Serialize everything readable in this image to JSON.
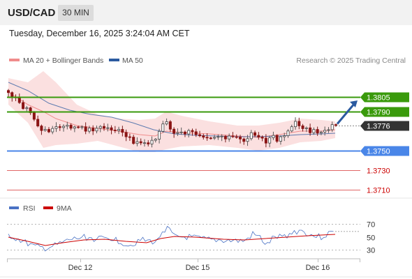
{
  "header": {
    "symbol": "USD/CAD",
    "timeframe": "30 MIN",
    "timestamp": "Tuesday, December 16, 2025 3:24:04 AM CET"
  },
  "legend": {
    "items": [
      {
        "label": "MA 20 + Bollinger Bands",
        "color": "#f08c8c"
      },
      {
        "label": "MA 50",
        "color": "#2b5aa0"
      }
    ],
    "credit": "Research © 2025 Trading Central"
  },
  "chart_data": [
    {
      "type": "line",
      "panel": "price",
      "ylim": [
        1.37,
        1.383
      ],
      "levels": [
        {
          "value": 1.3805,
          "label": "1.3805",
          "kind": "resistance",
          "color": "#3a9a0c",
          "text_color": "#ffffff",
          "tag": "box"
        },
        {
          "value": 1.379,
          "label": "1.3790",
          "kind": "resistance",
          "color": "#3a9a0c",
          "text_color": "#ffffff",
          "tag": "box"
        },
        {
          "value": 1.3776,
          "label": "1.3776",
          "kind": "last-price",
          "color": "#333333",
          "text_color": "#ffffff",
          "tag": "box"
        },
        {
          "value": 1.375,
          "label": "1.3750",
          "kind": "pivot",
          "color": "#4a86e8",
          "text_color": "#ffffff",
          "tag": "box"
        },
        {
          "value": 1.373,
          "label": "1.3730",
          "kind": "support",
          "color": "#e06666",
          "text_color": "#cc0000",
          "tag": "text"
        },
        {
          "value": 1.371,
          "label": "1.3710",
          "kind": "support",
          "color": "#e06666",
          "text_color": "#cc0000",
          "tag": "text"
        }
      ],
      "series": [
        {
          "name": "MA 20 + Bollinger Bands",
          "color": "#f08c8c"
        },
        {
          "name": "MA 50",
          "color": "#2b5aa0"
        }
      ],
      "x_ticks": [
        "Dec 12",
        "Dec 15",
        "Dec 16"
      ],
      "projection": {
        "from": 1.3776,
        "to": 1.3805,
        "color": "#2b5aa0"
      }
    },
    {
      "type": "line",
      "panel": "oscillator",
      "ylim": [
        20,
        80
      ],
      "y_ticks": [
        "70",
        "50",
        "30"
      ],
      "series": [
        {
          "name": "RSI",
          "color": "#4a72c4"
        },
        {
          "name": "9MA",
          "color": "#cc0000"
        }
      ]
    }
  ]
}
